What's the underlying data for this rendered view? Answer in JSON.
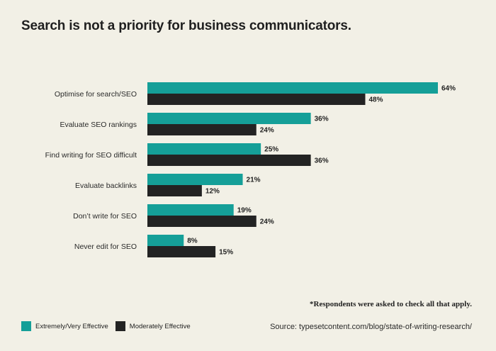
{
  "chart_data": {
    "type": "bar",
    "orientation": "horizontal",
    "title": "Search is not a priority for business communicators.",
    "categories": [
      "Optimise for search/SEO",
      "Evaluate SEO rankings",
      "Find writing for SEO difficult",
      "Evaluate backlinks",
      "Don’t write for SEO",
      "Never edit for SEO"
    ],
    "series": [
      {
        "name": "Extremely/Very Effective",
        "color": "#159f98",
        "values": [
          64,
          36,
          25,
          21,
          19,
          8
        ]
      },
      {
        "name": "Moderately Effective",
        "color": "#232323",
        "values": [
          48,
          24,
          36,
          12,
          24,
          15
        ]
      }
    ],
    "value_suffix": "%",
    "xlim": [
      0,
      64
    ],
    "grid": false,
    "legend_position": "bottom-left"
  },
  "footnote": "*Respondents were asked to check all that apply.",
  "source": "Source: typesetcontent.com/blog/state-of-writing-research/"
}
